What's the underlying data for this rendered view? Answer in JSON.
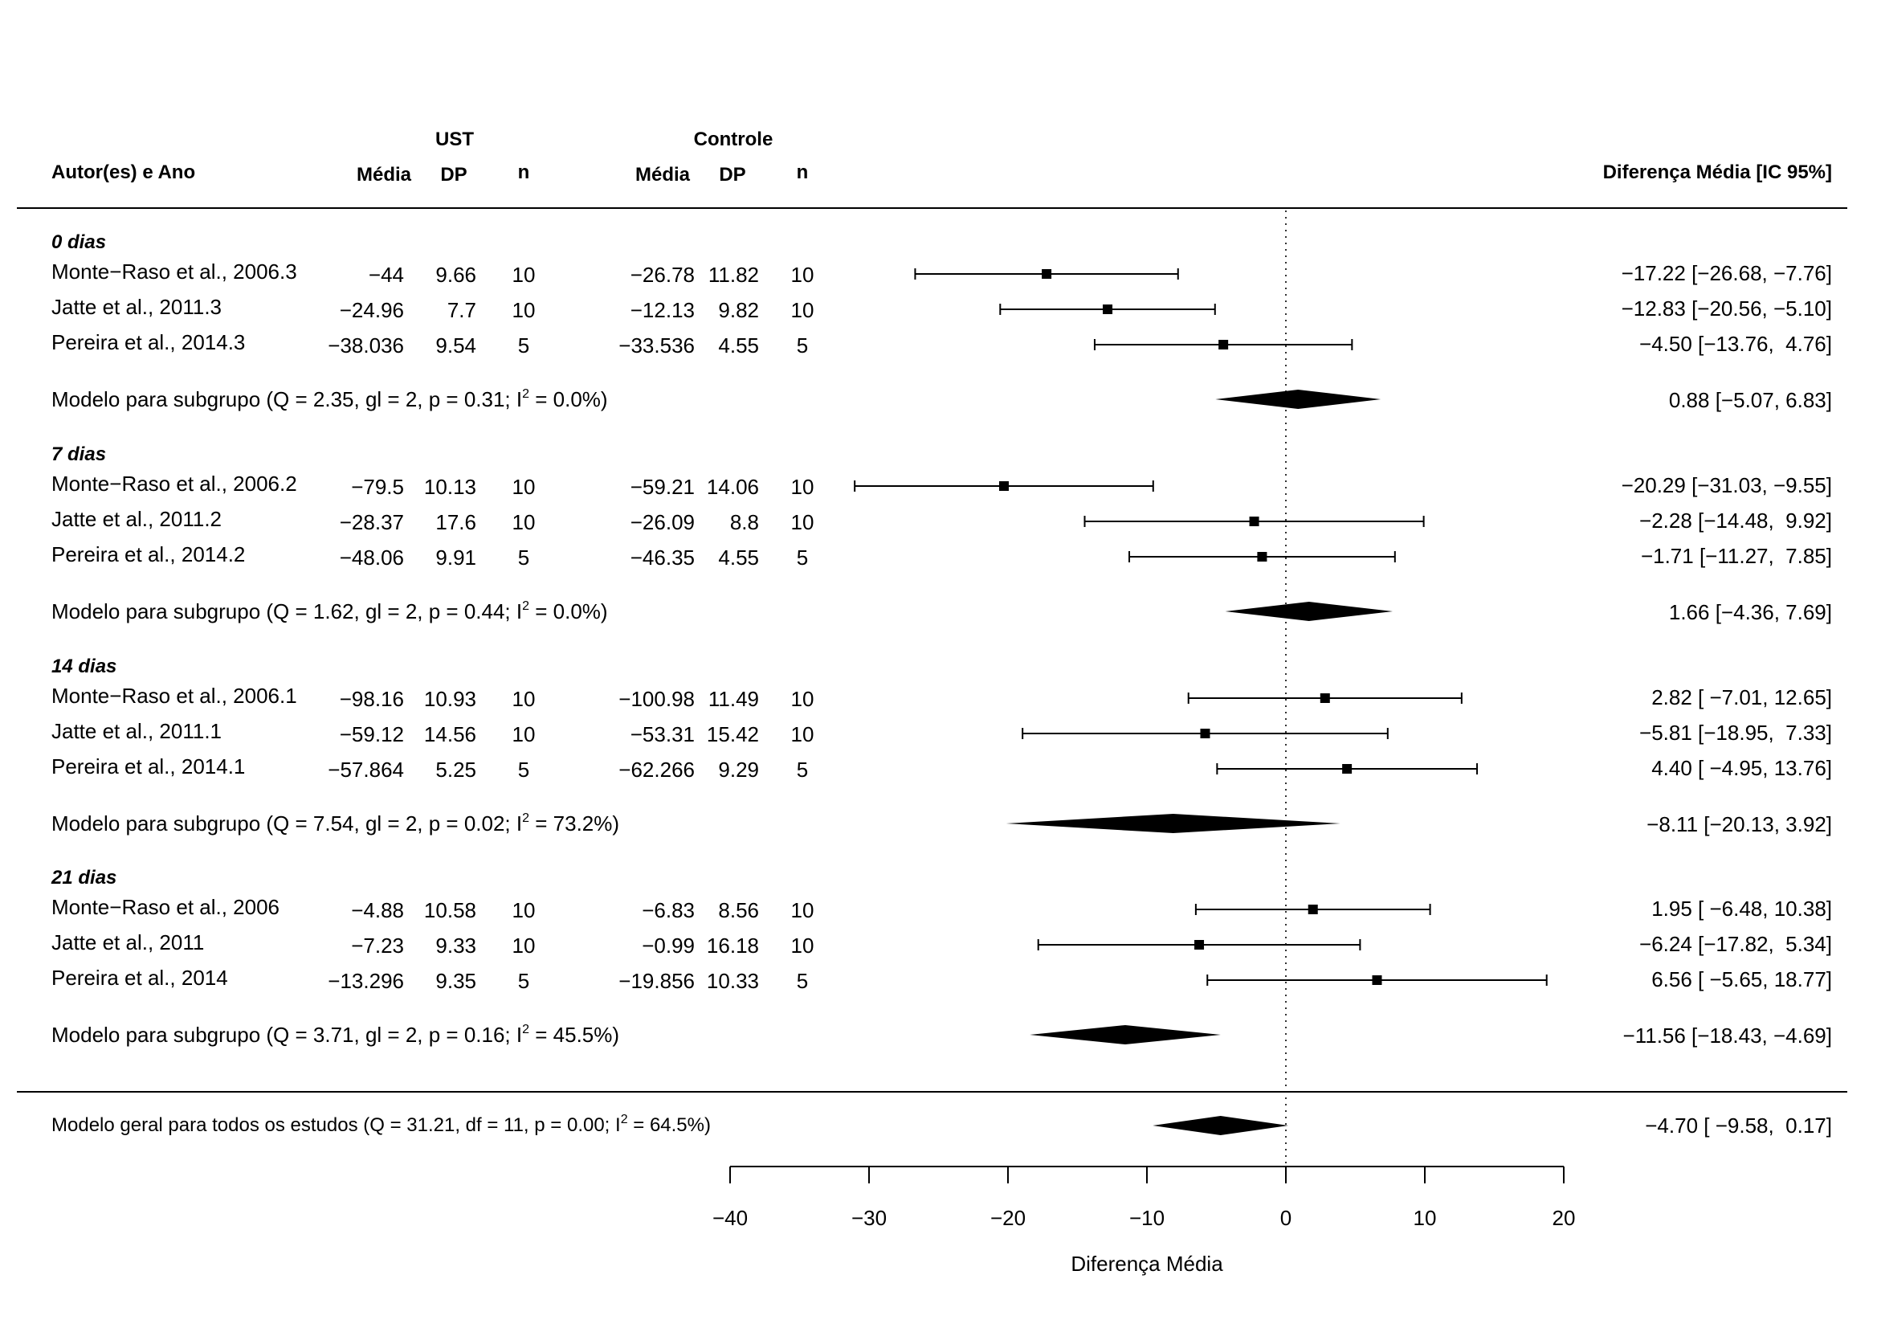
{
  "chart_data": {
    "type": "forest",
    "xlabel": "Diferença Média",
    "xlim": [
      -40,
      20
    ],
    "xticks": [
      -40,
      -30,
      -20,
      -10,
      0,
      10,
      20
    ],
    "xtick_labels": [
      "−40",
      "−30",
      "−20",
      "−10",
      "0",
      "10",
      "20"
    ],
    "reference_line": 0,
    "headers": {
      "study": "Autor(es) e Ano",
      "group1": "UST",
      "group2": "Controle",
      "mean": "Média",
      "sd": "DP",
      "n": "n",
      "effect": "Diferença Média [IC 95%]"
    },
    "groups": [
      {
        "label": "0 dias",
        "studies": [
          {
            "name": "Monte−Raso et al., 2006.3",
            "ust_mean": "−44",
            "ust_sd": "9.66",
            "ust_n": "10",
            "ctrl_mean": "−26.78",
            "ctrl_sd": "11.82",
            "ctrl_n": "10",
            "md": -17.22,
            "lo": -26.68,
            "hi": -7.76,
            "label": "−17.22 [−26.68, −7.76]"
          },
          {
            "name": "Jatte et al., 2011.3",
            "ust_mean": "−24.96",
            "ust_sd": "7.7",
            "ust_n": "10",
            "ctrl_mean": "−12.13",
            "ctrl_sd": "9.82",
            "ctrl_n": "10",
            "md": -12.83,
            "lo": -20.56,
            "hi": -5.1,
            "label": "−12.83 [−20.56, −5.10]"
          },
          {
            "name": "Pereira et al., 2014.3",
            "ust_mean": "−38.036",
            "ust_sd": "9.54",
            "ust_n": "5",
            "ctrl_mean": "−33.536",
            "ctrl_sd": "4.55",
            "ctrl_n": "5",
            "md": -4.5,
            "lo": -13.76,
            "hi": 4.76,
            "label": "−4.50 [−13.76,  4.76]"
          }
        ],
        "model": {
          "label": "Modelo para subgrupo (Q = 2.35, gl = 2, p = 0.31; I",
          "sup": "2",
          "label_end": " = 0.0%)",
          "md": 0.88,
          "lo": -5.07,
          "hi": 6.83,
          "value_label": "0.88 [−5.07, 6.83]"
        }
      },
      {
        "label": "7 dias",
        "studies": [
          {
            "name": "Monte−Raso et al., 2006.2",
            "ust_mean": "−79.5",
            "ust_sd": "10.13",
            "ust_n": "10",
            "ctrl_mean": "−59.21",
            "ctrl_sd": "14.06",
            "ctrl_n": "10",
            "md": -20.29,
            "lo": -31.03,
            "hi": -9.55,
            "label": "−20.29 [−31.03, −9.55]"
          },
          {
            "name": "Jatte et al., 2011.2",
            "ust_mean": "−28.37",
            "ust_sd": "17.6",
            "ust_n": "10",
            "ctrl_mean": "−26.09",
            "ctrl_sd": "8.8",
            "ctrl_n": "10",
            "md": -2.28,
            "lo": -14.48,
            "hi": 9.92,
            "label": "−2.28 [−14.48,  9.92]"
          },
          {
            "name": "Pereira et al., 2014.2",
            "ust_mean": "−48.06",
            "ust_sd": "9.91",
            "ust_n": "5",
            "ctrl_mean": "−46.35",
            "ctrl_sd": "4.55",
            "ctrl_n": "5",
            "md": -1.71,
            "lo": -11.27,
            "hi": 7.85,
            "label": "−1.71 [−11.27,  7.85]"
          }
        ],
        "model": {
          "label": "Modelo para subgrupo (Q = 1.62, gl = 2, p = 0.44; I",
          "sup": "2",
          "label_end": " = 0.0%)",
          "md": 1.66,
          "lo": -4.36,
          "hi": 7.69,
          "value_label": "1.66 [−4.36, 7.69]"
        }
      },
      {
        "label": "14 dias",
        "studies": [
          {
            "name": "Monte−Raso et al., 2006.1",
            "ust_mean": "−98.16",
            "ust_sd": "10.93",
            "ust_n": "10",
            "ctrl_mean": "−100.98",
            "ctrl_sd": "11.49",
            "ctrl_n": "10",
            "md": 2.82,
            "lo": -7.01,
            "hi": 12.65,
            "label": "2.82 [ −7.01, 12.65]"
          },
          {
            "name": "Jatte et al., 2011.1",
            "ust_mean": "−59.12",
            "ust_sd": "14.56",
            "ust_n": "10",
            "ctrl_mean": "−53.31",
            "ctrl_sd": "15.42",
            "ctrl_n": "10",
            "md": -5.81,
            "lo": -18.95,
            "hi": 7.33,
            "label": "−5.81 [−18.95,  7.33]"
          },
          {
            "name": "Pereira et al., 2014.1",
            "ust_mean": "−57.864",
            "ust_sd": "5.25",
            "ust_n": "5",
            "ctrl_mean": "−62.266",
            "ctrl_sd": "9.29",
            "ctrl_n": "5",
            "md": 4.4,
            "lo": -4.95,
            "hi": 13.76,
            "label": "4.40 [ −4.95, 13.76]"
          }
        ],
        "model": {
          "label": "Modelo para subgrupo (Q = 7.54, gl = 2, p = 0.02; I",
          "sup": "2",
          "label_end": " = 73.2%)",
          "md": -8.11,
          "lo": -20.13,
          "hi": 3.92,
          "value_label": "−8.11 [−20.13, 3.92]"
        }
      },
      {
        "label": "21 dias",
        "studies": [
          {
            "name": "Monte−Raso et al., 2006",
            "ust_mean": "−4.88",
            "ust_sd": "10.58",
            "ust_n": "10",
            "ctrl_mean": "−6.83",
            "ctrl_sd": "8.56",
            "ctrl_n": "10",
            "md": 1.95,
            "lo": -6.48,
            "hi": 10.38,
            "label": "1.95 [ −6.48, 10.38]"
          },
          {
            "name": "Jatte et al., 2011",
            "ust_mean": "−7.23",
            "ust_sd": "9.33",
            "ust_n": "10",
            "ctrl_mean": "−0.99",
            "ctrl_sd": "16.18",
            "ctrl_n": "10",
            "md": -6.24,
            "lo": -17.82,
            "hi": 5.34,
            "label": "−6.24 [−17.82,  5.34]"
          },
          {
            "name": "Pereira et al., 2014",
            "ust_mean": "−13.296",
            "ust_sd": "9.35",
            "ust_n": "5",
            "ctrl_mean": "−19.856",
            "ctrl_sd": "10.33",
            "ctrl_n": "5",
            "md": 6.56,
            "lo": -5.65,
            "hi": 18.77,
            "label": "6.56 [ −5.65, 18.77]"
          }
        ],
        "model": {
          "label": "Modelo para subgrupo (Q = 3.71, gl = 2, p = 0.16; I",
          "sup": "2",
          "label_end": " = 45.5%)",
          "md": -11.56,
          "lo": -18.43,
          "hi": -4.69,
          "value_label": "−11.56 [−18.43, −4.69]"
        }
      }
    ],
    "overall": {
      "label": "Modelo geral para todos os estudos (Q = 31.21, df = 11, p = 0.00; I",
      "sup": "2",
      "label_end": " = 64.5%)",
      "md": -4.7,
      "lo": -9.58,
      "hi": 0.17,
      "value_label": "−4.70 [ −9.58,  0.17]"
    }
  }
}
